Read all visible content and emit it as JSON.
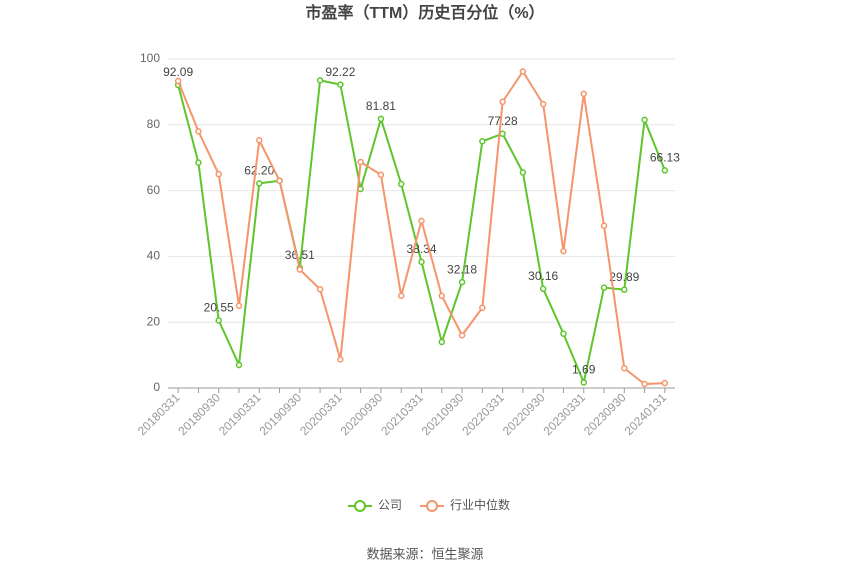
{
  "chart_data": {
    "type": "line",
    "title": "市盈率（TTM）历史百分位（%）",
    "source": "数据来源：恒生聚源",
    "categories": [
      "20180331",
      null,
      "20180930",
      null,
      "20190331",
      null,
      "20190930",
      null,
      "20200331",
      null,
      "20200930",
      null,
      "20210331",
      null,
      "20210930",
      null,
      "20220331",
      null,
      "20220930",
      null,
      "20230331",
      null,
      "20230930",
      null,
      "20240131"
    ],
    "ylim": [
      0,
      100
    ],
    "yticks": [
      0,
      20,
      40,
      60,
      80,
      100
    ],
    "grid": true,
    "legend": "bottom",
    "series": [
      {
        "name": "公司",
        "color": "#5ec52c",
        "values": [
          92.09,
          68.5,
          20.55,
          7,
          62.2,
          63,
          36.51,
          93.5,
          92.22,
          60.5,
          81.81,
          62,
          38.34,
          14,
          32.18,
          75,
          77.28,
          65.5,
          30.16,
          16.5,
          1.69,
          30.5,
          29.89,
          81.5,
          66.13
        ],
        "value_labels": [
          "92.09",
          null,
          "20.55",
          null,
          "62.20",
          null,
          "36.51",
          null,
          "92.22",
          null,
          "81.81",
          null,
          "38.34",
          null,
          "32.18",
          null,
          "77.28",
          null,
          "30.16",
          null,
          "1.69",
          null,
          "29.89",
          null,
          "66.13"
        ]
      },
      {
        "name": "行业中位数",
        "color": "#f5956c",
        "values": [
          93.3,
          78,
          65,
          25,
          75.3,
          63,
          36,
          30,
          8.7,
          68.7,
          64.8,
          28,
          50.8,
          28,
          16,
          24.4,
          87,
          96.2,
          86.3,
          41.6,
          89.4,
          49.3,
          6,
          1.2,
          1.5
        ]
      }
    ]
  }
}
